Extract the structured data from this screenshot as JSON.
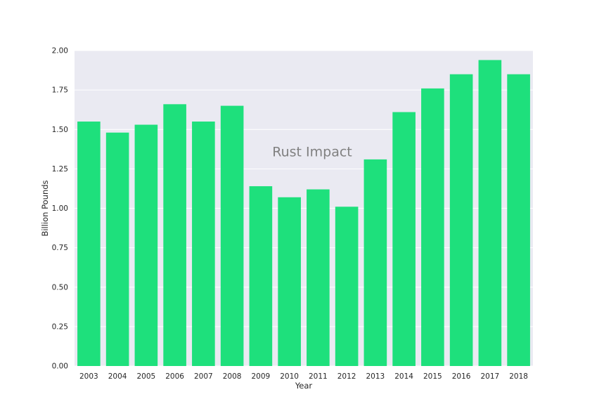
{
  "chart_data": {
    "type": "bar",
    "categories": [
      "2003",
      "2004",
      "2005",
      "2006",
      "2007",
      "2008",
      "2009",
      "2010",
      "2011",
      "2012",
      "2013",
      "2014",
      "2015",
      "2016",
      "2017",
      "2018"
    ],
    "values": [
      1.55,
      1.48,
      1.53,
      1.66,
      1.55,
      1.65,
      1.14,
      1.07,
      1.12,
      1.01,
      1.31,
      1.61,
      1.76,
      1.85,
      1.94,
      1.85
    ],
    "xlabel": "Year",
    "ylabel": "Billion Pounds",
    "ylim": [
      0,
      2.0
    ],
    "yticks": [
      "0.00",
      "0.25",
      "0.50",
      "0.75",
      "1.00",
      "1.25",
      "1.50",
      "1.75",
      "2.00"
    ],
    "annotation": "Rust Impact",
    "grid": true,
    "colors": {
      "bar": "#1ee07c",
      "plot_background": "#eaeaf2",
      "grid": "#ffffff"
    }
  }
}
